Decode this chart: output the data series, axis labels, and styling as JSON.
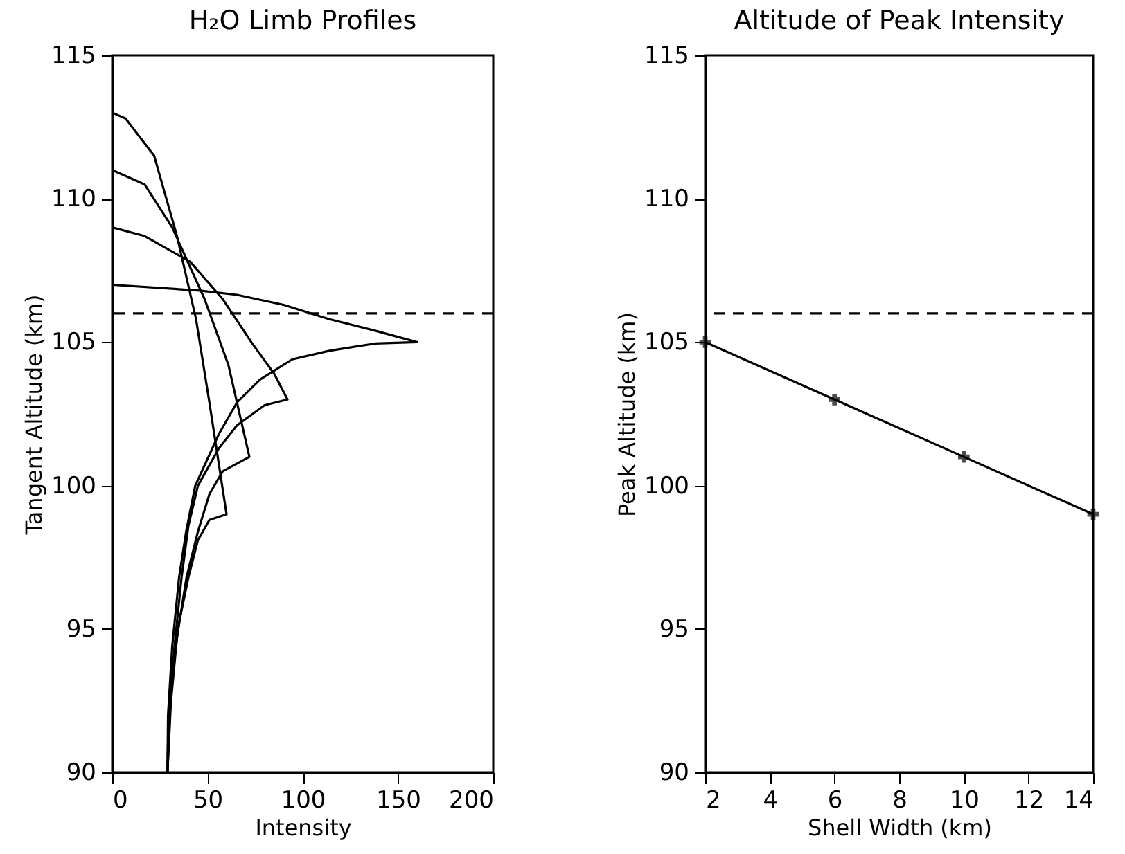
{
  "chart_data": [
    {
      "type": "line",
      "title": "H₂O Limb Profiles",
      "xlabel": "Intensity",
      "ylabel": "Tangent Altitude (km)",
      "xlim": [
        0,
        200
      ],
      "ylim": [
        90,
        115
      ],
      "xticks": [
        0,
        50,
        100,
        150,
        200
      ],
      "yticks": [
        90,
        95,
        100,
        105,
        110,
        115
      ],
      "line_style": "solid",
      "series": [
        {
          "color": "#000000",
          "x": [
            0,
            7,
            22,
            34,
            44,
            51,
            60,
            51,
            45,
            40,
            35,
            31.5,
            29
          ],
          "values": [
            113,
            112.8,
            111.5,
            108.7,
            105.8,
            102.9,
            99,
            98.8,
            98.1,
            96.8,
            95.2,
            93.4,
            90
          ]
        },
        {
          "color": "#000000",
          "x": [
            0,
            17,
            31.5,
            48.5,
            61,
            72,
            58,
            51,
            45,
            39,
            34,
            30.3,
            29
          ],
          "values": [
            111,
            110.5,
            109,
            106.5,
            104.2,
            101,
            100.5,
            99.7,
            98.4,
            96.8,
            94.7,
            92.1,
            90
          ]
        },
        {
          "color": "#000000",
          "x": [
            0,
            17,
            41,
            58,
            73,
            85,
            92,
            80,
            65.5,
            56,
            45,
            40,
            36.4,
            32.7,
            29.6,
            29
          ],
          "values": [
            109,
            108.7,
            107.8,
            106.5,
            105,
            103.9,
            103,
            102.8,
            102.1,
            101.3,
            100,
            98.6,
            96.8,
            94.4,
            92,
            90
          ]
        },
        {
          "color": "#000000",
          "x": [
            0,
            46,
            65.5,
            90,
            114,
            138,
            160,
            138,
            114,
            94.5,
            77.6,
            65.5,
            56,
            43.6,
            38.8,
            35.1,
            31.5,
            29.3,
            29
          ],
          "values": [
            107,
            106.8,
            106.65,
            106.3,
            105.8,
            105.4,
            105,
            104.95,
            104.7,
            104.4,
            103.7,
            102.9,
            101.8,
            100,
            98.4,
            96.8,
            94.4,
            92,
            90
          ]
        }
      ],
      "ref_lines": [
        {
          "axis": "y",
          "value": 106,
          "line_style": "dashed",
          "color": "#000000"
        }
      ]
    },
    {
      "type": "line",
      "title": "Altitude of Peak Intensity",
      "xlabel": "Shell Width (km)",
      "ylabel": "Peak Altitude (km)",
      "xlim": [
        2,
        14
      ],
      "xticks": [
        2,
        4,
        6,
        8,
        10,
        12,
        14
      ],
      "ylim": [
        90,
        115
      ],
      "yticks": [
        90,
        95,
        100,
        105,
        110,
        115
      ],
      "marker": "cross",
      "line_style": "solid",
      "series": [
        {
          "color": "#000000",
          "x": [
            2,
            6,
            10,
            14
          ],
          "values": [
            105,
            103,
            101,
            99
          ]
        }
      ],
      "ref_lines": [
        {
          "axis": "y",
          "value": 106,
          "line_style": "dashed",
          "color": "#000000"
        }
      ]
    }
  ]
}
